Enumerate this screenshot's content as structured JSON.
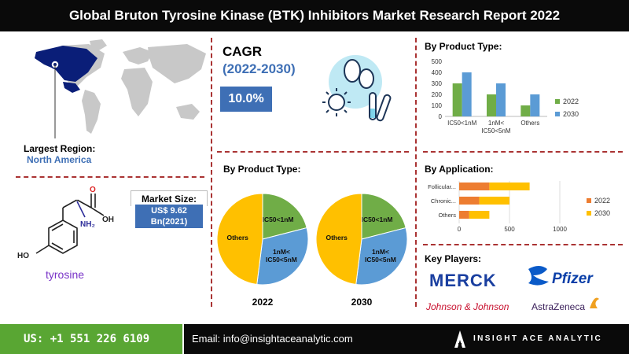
{
  "header": {
    "title": "Global Bruton Tyrosine Kinase (BTK) Inhibitors Market Research Report 2022"
  },
  "region": {
    "label": "Largest Region:",
    "value": "North America"
  },
  "market_size": {
    "label": "Market Size:",
    "value_line1": "US$ 9.62",
    "value_line2": "Bn(2021)"
  },
  "molecule": {
    "name": "tyrosine",
    "labels": {
      "oh": "OH",
      "nh2": "NH₂",
      "ho": "HO",
      "o": "O"
    }
  },
  "cagr": {
    "title": "CAGR",
    "years": "(2022-2030)",
    "value": "10.0%"
  },
  "pie_section": {
    "title": "By Product Type:"
  },
  "bar_section": {
    "title": "By Product Type:"
  },
  "hbar_section": {
    "title": "By Application:"
  },
  "key_players": {
    "title": "Key Players:",
    "logos": [
      "MERCK",
      "Pfizer",
      "Johnson & Johnson",
      "AstraZeneca"
    ]
  },
  "footer": {
    "phone": "US: +1 551 226 6109",
    "email": "Email: info@insightaceanalytic.com",
    "brand": "INSIGHT ACE ANALYTIC"
  },
  "colors": {
    "blue": "#5b9bd5",
    "green": "#70ad47",
    "orange": "#ed7d31",
    "yellow": "#ffc000",
    "accent": "#3e6fb5"
  },
  "chart_data": [
    {
      "type": "bar",
      "title": "By Product Type:",
      "categories": [
        "IC50<1nM",
        "1nM< IC50<5nM",
        "Others"
      ],
      "series": [
        {
          "name": "2022",
          "values": [
            300,
            200,
            100
          ],
          "color": "#70ad47"
        },
        {
          "name": "2030",
          "values": [
            400,
            300,
            200
          ],
          "color": "#5b9bd5"
        }
      ],
      "yticks": [
        0,
        100,
        200,
        300,
        400,
        500
      ],
      "ylim": [
        0,
        500
      ],
      "grid": false,
      "legend": "right"
    },
    {
      "type": "bar",
      "orientation": "horizontal",
      "title": "By Application:",
      "categories": [
        "Follicular...",
        "Chronic...",
        "Others"
      ],
      "series": [
        {
          "name": "2022",
          "values": [
            300,
            200,
            100
          ],
          "color": "#ed7d31"
        },
        {
          "name": "2030",
          "values": [
            400,
            300,
            200
          ],
          "color": "#ffc000"
        }
      ],
      "stacked": true,
      "xticks": [
        0,
        500,
        1000
      ],
      "xlim": [
        0,
        1000
      ],
      "grid": true,
      "legend": "right"
    },
    {
      "type": "pie",
      "title": "2022",
      "slices": [
        {
          "label": "IC50<1nM",
          "value": 21,
          "color": "#70ad47"
        },
        {
          "label": "1nM< IC50<5nM",
          "value": 31,
          "color": "#5b9bd5"
        },
        {
          "label": "Others",
          "value": 48,
          "color": "#ffc000"
        }
      ]
    },
    {
      "type": "pie",
      "title": "2030",
      "slices": [
        {
          "label": "IC50<1nM",
          "value": 21,
          "color": "#70ad47"
        },
        {
          "label": "1nM< IC50<5nM",
          "value": 31,
          "color": "#5b9bd5"
        },
        {
          "label": "Others",
          "value": 48,
          "color": "#ffc000"
        }
      ]
    }
  ]
}
